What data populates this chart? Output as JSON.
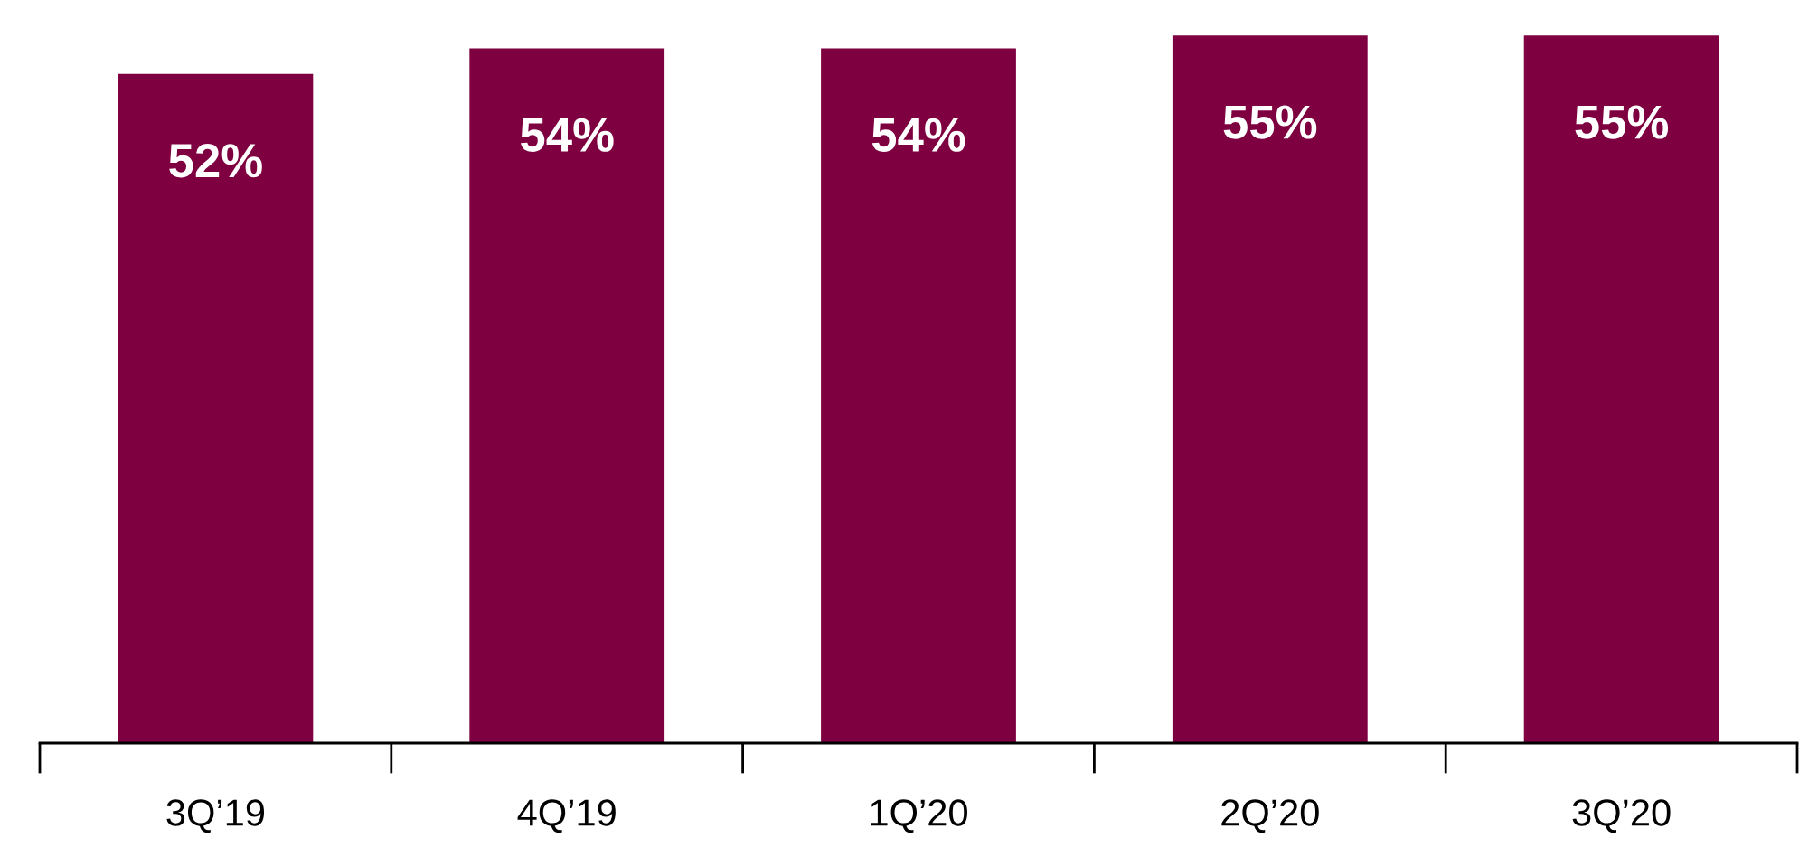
{
  "chart_data": {
    "type": "bar",
    "categories": [
      "3Q’19",
      "4Q’19",
      "1Q’20",
      "2Q’20",
      "3Q’20"
    ],
    "values": [
      52,
      54,
      54,
      55,
      55
    ],
    "value_labels": [
      "52%",
      "54%",
      "54%",
      "55%",
      "55%"
    ],
    "color": "#7f0040",
    "tick_labels": "x",
    "grid": false,
    "legend": false
  }
}
